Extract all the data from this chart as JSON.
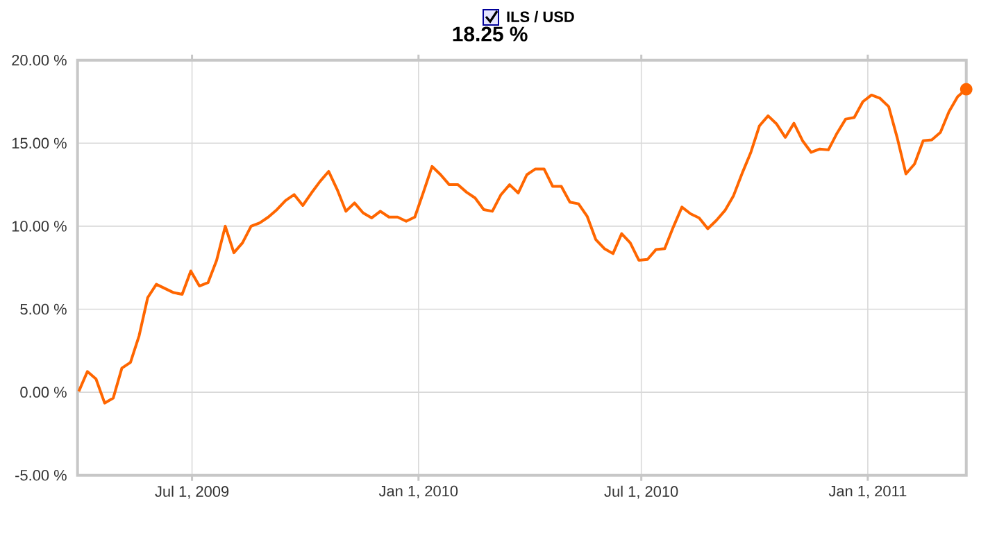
{
  "chart_data": {
    "type": "line",
    "title": "ILS / USD",
    "color": "#ff6600",
    "grid": true,
    "line_style": "solid",
    "x": [
      "2009-03-31",
      "2009-04-07",
      "2009-04-14",
      "2009-04-21",
      "2009-04-28",
      "2009-05-05",
      "2009-05-12",
      "2009-05-19",
      "2009-05-26",
      "2009-06-02",
      "2009-06-09",
      "2009-06-16",
      "2009-06-23",
      "2009-06-30",
      "2009-07-07",
      "2009-07-14",
      "2009-07-21",
      "2009-07-28",
      "2009-08-04",
      "2009-08-11",
      "2009-08-18",
      "2009-08-25",
      "2009-09-01",
      "2009-09-08",
      "2009-09-15",
      "2009-09-22",
      "2009-09-29",
      "2009-10-06",
      "2009-10-13",
      "2009-10-20",
      "2009-10-27",
      "2009-11-03",
      "2009-11-10",
      "2009-11-17",
      "2009-11-24",
      "2009-12-01",
      "2009-12-08",
      "2009-12-15",
      "2009-12-22",
      "2009-12-29",
      "2010-01-05",
      "2010-01-12",
      "2010-01-19",
      "2010-01-26",
      "2010-02-02",
      "2010-02-09",
      "2010-02-16",
      "2010-02-23",
      "2010-03-02",
      "2010-03-09",
      "2010-03-16",
      "2010-03-23",
      "2010-03-30",
      "2010-04-06",
      "2010-04-13",
      "2010-04-20",
      "2010-04-27",
      "2010-05-04",
      "2010-05-11",
      "2010-05-18",
      "2010-05-25",
      "2010-06-01",
      "2010-06-08",
      "2010-06-15",
      "2010-06-22",
      "2010-06-29",
      "2010-07-06",
      "2010-07-13",
      "2010-07-20",
      "2010-07-27",
      "2010-08-03",
      "2010-08-10",
      "2010-08-17",
      "2010-08-24",
      "2010-08-31",
      "2010-09-07",
      "2010-09-14",
      "2010-09-21",
      "2010-09-28",
      "2010-10-05",
      "2010-10-12",
      "2010-10-19",
      "2010-10-26",
      "2010-11-02",
      "2010-11-09",
      "2010-11-16",
      "2010-11-23",
      "2010-11-30",
      "2010-12-07",
      "2010-12-14",
      "2010-12-21",
      "2010-12-28",
      "2011-01-04",
      "2011-01-11",
      "2011-01-18",
      "2011-01-25",
      "2011-02-01",
      "2011-02-08",
      "2011-02-15",
      "2011-02-22",
      "2011-03-01",
      "2011-03-08",
      "2011-03-15",
      "2011-03-22"
    ],
    "values": [
      0.05,
      1.25,
      0.8,
      -0.65,
      -0.35,
      1.45,
      1.8,
      3.4,
      5.7,
      6.5,
      6.25,
      6.0,
      5.9,
      7.3,
      6.4,
      6.6,
      7.95,
      10.0,
      8.4,
      9.0,
      10.0,
      10.2,
      10.55,
      11.0,
      11.55,
      11.9,
      11.25,
      12.0,
      12.7,
      13.3,
      12.2,
      10.9,
      11.4,
      10.8,
      10.5,
      10.9,
      10.55,
      10.55,
      10.3,
      10.55,
      12.05,
      13.6,
      13.1,
      12.5,
      12.5,
      12.05,
      11.7,
      11.0,
      10.9,
      11.9,
      12.5,
      12.0,
      13.1,
      13.45,
      13.45,
      12.4,
      12.4,
      11.45,
      11.35,
      10.6,
      9.2,
      8.65,
      8.35,
      9.55,
      9.0,
      7.95,
      8.0,
      8.6,
      8.65,
      9.95,
      11.15,
      10.75,
      10.5,
      9.85,
      10.35,
      10.95,
      11.85,
      13.2,
      14.45,
      16.05,
      16.65,
      16.15,
      15.35,
      16.2,
      15.15,
      14.45,
      14.65,
      14.6,
      15.6,
      16.45,
      16.55,
      17.5,
      17.9,
      17.7,
      17.2,
      15.3,
      13.15,
      13.75,
      15.15,
      15.2,
      15.65,
      16.9,
      17.8,
      18.25
    ],
    "xlim": [
      "2009-03-30",
      "2011-03-22"
    ],
    "xticks": [
      {
        "value": "2009-07-01",
        "label": "Jul 1, 2009"
      },
      {
        "value": "2010-01-01",
        "label": "Jan 1, 2010"
      },
      {
        "value": "2010-07-01",
        "label": "Jul 1, 2010"
      },
      {
        "value": "2011-01-01",
        "label": "Jan 1, 2011"
      }
    ],
    "ylim": [
      -5,
      20
    ],
    "yticks": [
      {
        "value": -5,
        "label": "-5.00 %"
      },
      {
        "value": 0,
        "label": "0.00 %"
      },
      {
        "value": 5,
        "label": "5.00 %"
      },
      {
        "value": 10,
        "label": "10.00 %"
      },
      {
        "value": 15,
        "label": "15.00 %"
      },
      {
        "value": 20,
        "label": "20.00 %"
      }
    ],
    "annotations": [
      "18.25 %"
    ]
  }
}
